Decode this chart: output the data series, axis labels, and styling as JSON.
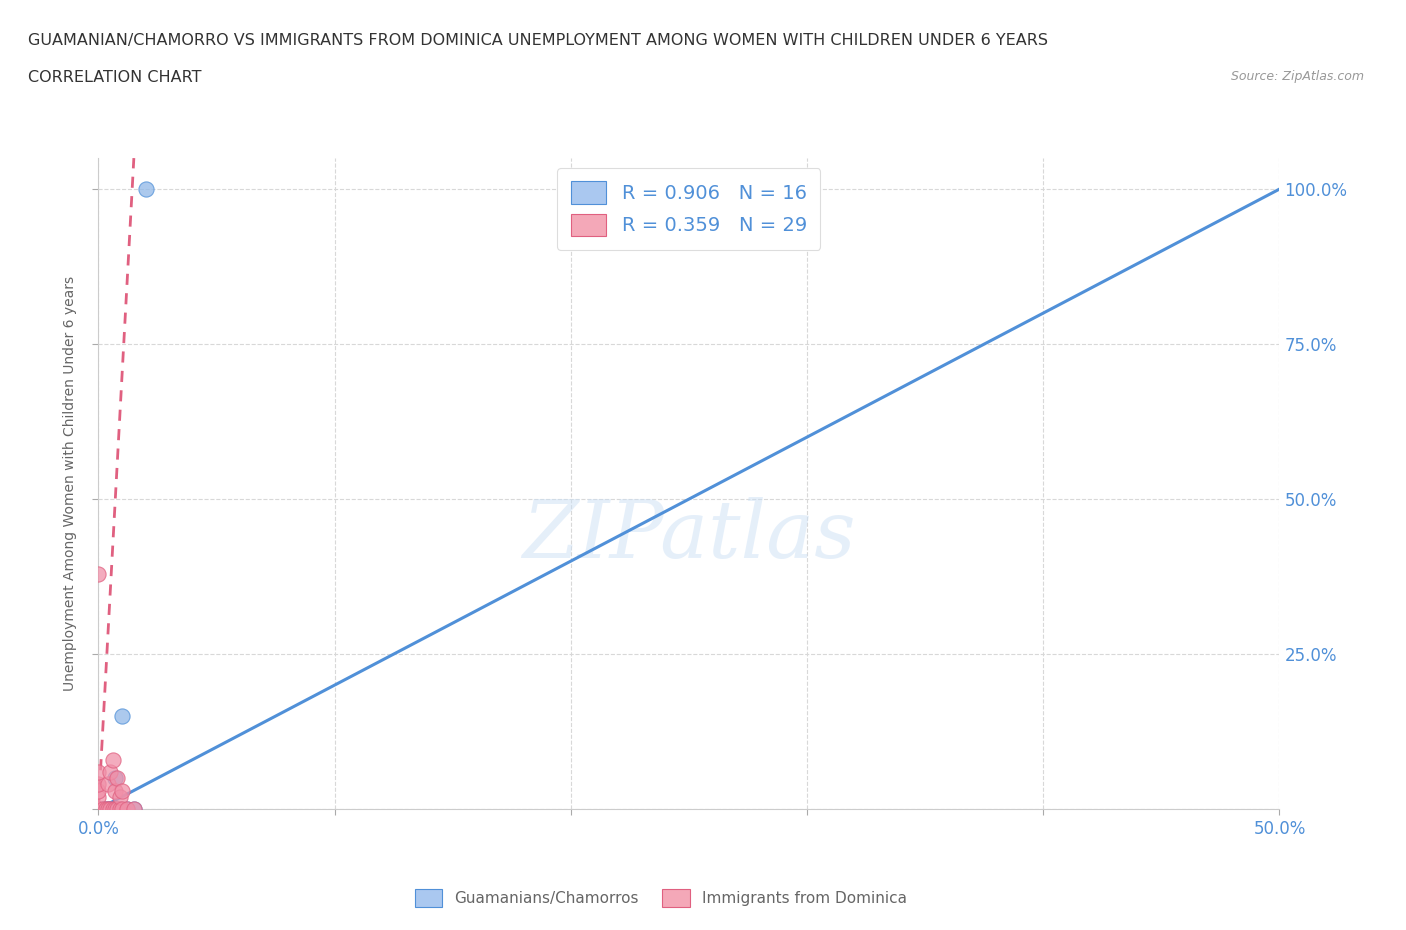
{
  "title_line1": "GUAMANIAN/CHAMORRO VS IMMIGRANTS FROM DOMINICA UNEMPLOYMENT AMONG WOMEN WITH CHILDREN UNDER 6 YEARS",
  "title_line2": "CORRELATION CHART",
  "source": "Source: ZipAtlas.com",
  "ylabel": "Unemployment Among Women with Children Under 6 years",
  "xlim": [
    0.0,
    0.5
  ],
  "ylim": [
    0.0,
    1.05
  ],
  "watermark": "ZIPatlas",
  "legend_r1": "R = 0.906",
  "legend_n1": "N = 16",
  "legend_r2": "R = 0.359",
  "legend_n2": "N = 29",
  "color_blue": "#aac8f0",
  "color_pink": "#f4a8b8",
  "line_blue": "#5090d8",
  "line_pink": "#e06080",
  "dot_color_blue": "#90b8e8",
  "dot_color_pink": "#f090a8",
  "guamanian_x": [
    0.0,
    0.0,
    0.0,
    0.002,
    0.003,
    0.004,
    0.005,
    0.005,
    0.006,
    0.007,
    0.008,
    0.009,
    0.01,
    0.012,
    0.015,
    0.02
  ],
  "guamanian_y": [
    0.0,
    0.0,
    0.0,
    0.0,
    0.0,
    0.0,
    0.0,
    0.0,
    0.0,
    0.05,
    0.0,
    0.0,
    0.15,
    0.0,
    0.0,
    1.0
  ],
  "dominica_x": [
    0.0,
    0.0,
    0.0,
    0.0,
    0.0,
    0.0,
    0.0,
    0.0,
    0.0,
    0.0,
    0.0,
    0.002,
    0.003,
    0.004,
    0.004,
    0.005,
    0.005,
    0.006,
    0.006,
    0.007,
    0.007,
    0.008,
    0.008,
    0.009,
    0.009,
    0.01,
    0.01,
    0.012,
    0.015
  ],
  "dominica_y": [
    0.0,
    0.0,
    0.0,
    0.0,
    0.0,
    0.0,
    0.02,
    0.03,
    0.04,
    0.06,
    0.38,
    0.0,
    0.0,
    0.0,
    0.04,
    0.0,
    0.06,
    0.0,
    0.08,
    0.0,
    0.03,
    0.0,
    0.05,
    0.0,
    0.02,
    0.0,
    0.03,
    0.0,
    0.0
  ],
  "bg_color": "#ffffff",
  "grid_color": "#d8d8d8",
  "title_color": "#333333",
  "axis_label_color": "#666666",
  "tick_color": "#5090d8"
}
